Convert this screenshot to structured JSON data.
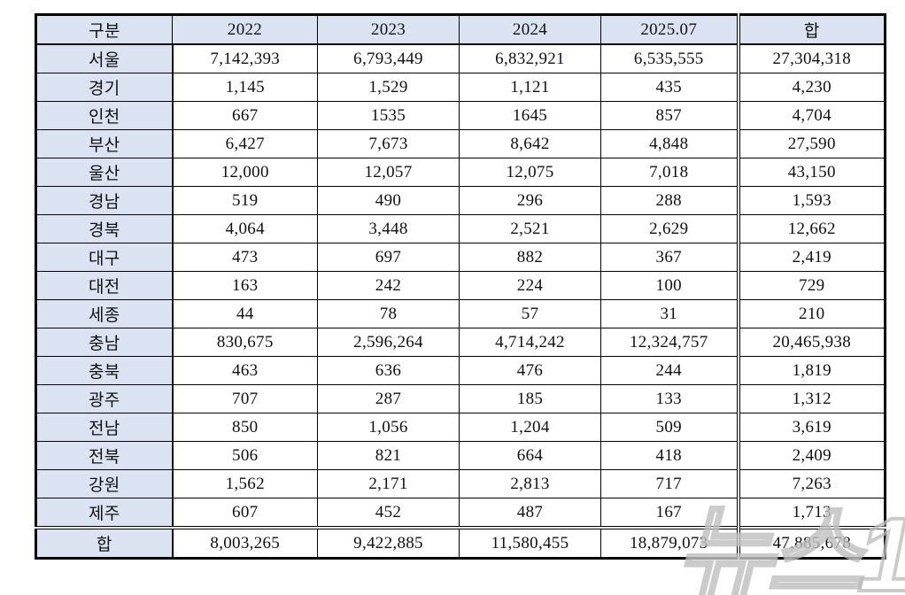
{
  "chart_data": {
    "type": "table",
    "title": "",
    "columns": [
      "구분",
      "2022",
      "2023",
      "2024",
      "2025.07",
      "합"
    ],
    "rows": [
      {
        "label": "서울",
        "values": [
          "7,142,393",
          "6,793,449",
          "6,832,921",
          "6,535,555",
          "27,304,318"
        ]
      },
      {
        "label": "경기",
        "values": [
          "1,145",
          "1,529",
          "1,121",
          "435",
          "4,230"
        ]
      },
      {
        "label": "인천",
        "values": [
          "667",
          "1535",
          "1645",
          "857",
          "4,704"
        ]
      },
      {
        "label": "부산",
        "values": [
          "6,427",
          "7,673",
          "8,642",
          "4,848",
          "27,590"
        ]
      },
      {
        "label": "울산",
        "values": [
          "12,000",
          "12,057",
          "12,075",
          "7,018",
          "43,150"
        ]
      },
      {
        "label": "경남",
        "values": [
          "519",
          "490",
          "296",
          "288",
          "1,593"
        ]
      },
      {
        "label": "경북",
        "values": [
          "4,064",
          "3,448",
          "2,521",
          "2,629",
          "12,662"
        ]
      },
      {
        "label": "대구",
        "values": [
          "473",
          "697",
          "882",
          "367",
          "2,419"
        ]
      },
      {
        "label": "대전",
        "values": [
          "163",
          "242",
          "224",
          "100",
          "729"
        ]
      },
      {
        "label": "세종",
        "values": [
          "44",
          "78",
          "57",
          "31",
          "210"
        ]
      },
      {
        "label": "충남",
        "values": [
          "830,675",
          "2,596,264",
          "4,714,242",
          "12,324,757",
          "20,465,938"
        ]
      },
      {
        "label": "충북",
        "values": [
          "463",
          "636",
          "476",
          "244",
          "1,819"
        ]
      },
      {
        "label": "광주",
        "values": [
          "707",
          "287",
          "185",
          "133",
          "1,312"
        ]
      },
      {
        "label": "전남",
        "values": [
          "850",
          "1,056",
          "1,204",
          "509",
          "3,619"
        ]
      },
      {
        "label": "전북",
        "values": [
          "506",
          "821",
          "664",
          "418",
          "2,409"
        ]
      },
      {
        "label": "강원",
        "values": [
          "1,562",
          "2,171",
          "2,813",
          "717",
          "7,263"
        ]
      },
      {
        "label": "제주",
        "values": [
          "607",
          "452",
          "487",
          "167",
          "1,713"
        ]
      },
      {
        "label": "합",
        "values": [
          "8,003,265",
          "9,422,885",
          "11,580,455",
          "18,879,073",
          "47,885,678"
        ],
        "is_total": true
      }
    ],
    "layout": {
      "header_background": "#dbe2f1",
      "label_column_background": "#dbe2f1",
      "grid": true,
      "border_color": "#000000"
    }
  },
  "watermark": {
    "text": "뉴스1"
  },
  "colors": {
    "header_bg": "#dbe2f1",
    "border": "#000000",
    "watermark_gray": "#bababa",
    "page_bg": "#ffffff"
  }
}
